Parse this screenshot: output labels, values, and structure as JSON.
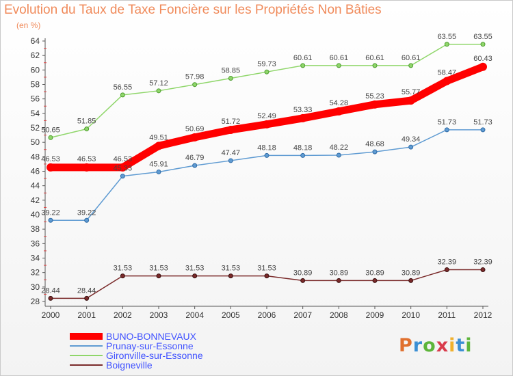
{
  "title": "Evolution du Taux de Taxe Foncière sur les Propriétés Non Bâties",
  "unit": "(en %)",
  "logo": "Proxiti",
  "chart_data": {
    "type": "line",
    "title": "Evolution du Taux de Taxe Foncière sur les Propriétés Non Bâties",
    "ylabel": "(en %)",
    "x": [
      "2000",
      "2001",
      "2002",
      "2003",
      "2004",
      "2005",
      "2006",
      "2007",
      "2008",
      "2009",
      "2010",
      "2011",
      "2012"
    ],
    "ylim": [
      28,
      64
    ],
    "yticks": [
      28,
      30,
      32,
      34,
      36,
      38,
      40,
      42,
      44,
      46,
      48,
      50,
      52,
      54,
      56,
      58,
      60,
      62,
      64
    ],
    "grid": false,
    "legend": "bottom-left",
    "series": [
      {
        "name": "BUNO-BONNEVAUX",
        "color": "#ff0000",
        "values": [
          46.53,
          46.53,
          46.53,
          49.51,
          50.69,
          51.72,
          52.49,
          53.33,
          54.28,
          55.23,
          55.77,
          58.47,
          60.43
        ]
      },
      {
        "name": "Prunay-sur-Essonne",
        "color": "#5f9bd2",
        "values": [
          39.22,
          39.22,
          45.33,
          45.91,
          46.79,
          47.47,
          48.18,
          48.18,
          48.22,
          48.68,
          49.34,
          51.73,
          51.73
        ]
      },
      {
        "name": "Gironville-sur-Essonne",
        "color": "#8fd66a",
        "values": [
          50.65,
          51.85,
          56.55,
          57.12,
          57.98,
          58.85,
          59.73,
          60.61,
          60.61,
          60.61,
          60.61,
          63.55,
          63.55
        ]
      },
      {
        "name": "Boigneville",
        "color": "#7a2a2a",
        "values": [
          28.44,
          28.44,
          31.53,
          31.53,
          31.53,
          31.53,
          31.53,
          30.89,
          30.89,
          30.89,
          30.89,
          32.39,
          32.39
        ]
      }
    ],
    "labels": [
      [
        "46.53",
        "46.53",
        "46.53",
        "49.51",
        "50.69",
        "51.72",
        "52.49",
        "53.33",
        "54.28",
        "55.23",
        "55.77",
        "58.47",
        "60.43"
      ],
      [
        "39.22",
        "39.22",
        "45.33",
        "45.91",
        "46.79",
        "47.47",
        "48.18",
        "48.18",
        "48.22",
        "48.68",
        "49.34",
        "51.73",
        "51.73"
      ],
      [
        "50.65",
        "51.85",
        "56.55",
        "57.12",
        "57.98",
        "58.85",
        "59.73",
        "60.61",
        "60.61",
        "60.61",
        "60.61",
        "63.55",
        "63.55"
      ],
      [
        "28.44",
        "28.44",
        "31.53",
        "31.53",
        "31.53",
        "31.53",
        "31.53",
        "30.89",
        "30.89",
        "30.89",
        "30.89",
        "32.39",
        "32.39"
      ]
    ]
  }
}
